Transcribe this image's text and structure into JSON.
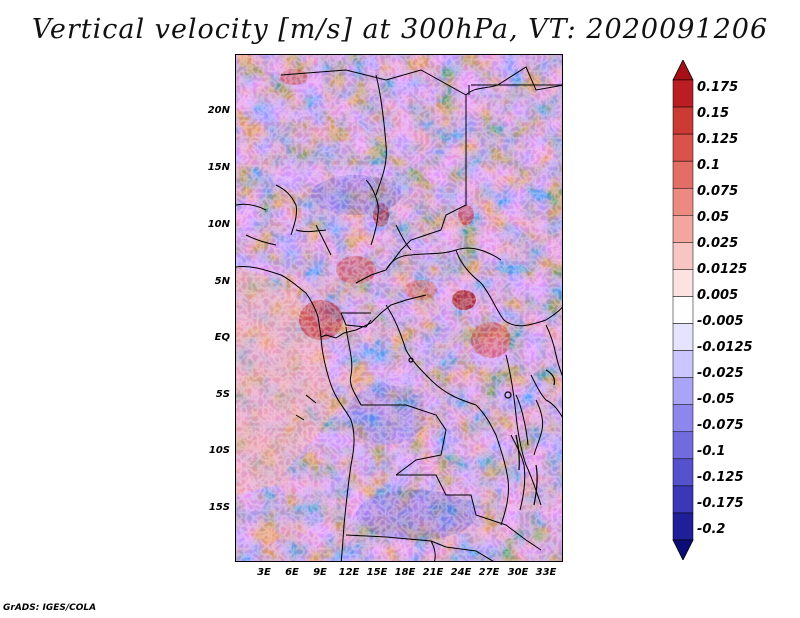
{
  "title": "Vertical velocity [m/s] at 300hPa, VT: 2020091206",
  "footer": "GrADS: IGES/COLA",
  "map": {
    "y_labels": [
      "20N",
      "15N",
      "10N",
      "5N",
      "EQ",
      "5S",
      "10S",
      "15S"
    ],
    "x_labels": [
      "3E",
      "6E",
      "9E",
      "12E",
      "15E",
      "18E",
      "21E",
      "24E",
      "27E",
      "30E",
      "33E"
    ]
  },
  "colorbar": {
    "labels": [
      "0.175",
      "0.15",
      "0.125",
      "0.1",
      "0.075",
      "0.05",
      "0.025",
      "0.0125",
      "0.005",
      "-0.005",
      "-0.0125",
      "-0.025",
      "-0.05",
      "-0.075",
      "-0.1",
      "-0.125",
      "-0.175",
      "-0.2"
    ],
    "colors": [
      "#a50f15",
      "#bb1e22",
      "#cc3a34",
      "#d9534b",
      "#e36e65",
      "#ec8a82",
      "#f3a6a0",
      "#f8c6c2",
      "#fce3e1",
      "#fefefe",
      "#e6e3ff",
      "#cbc6ff",
      "#aaa4f6",
      "#8d86ec",
      "#716bdf",
      "#5652cd",
      "#3a38b6",
      "#1e1f99",
      "#0c0c78"
    ]
  }
}
